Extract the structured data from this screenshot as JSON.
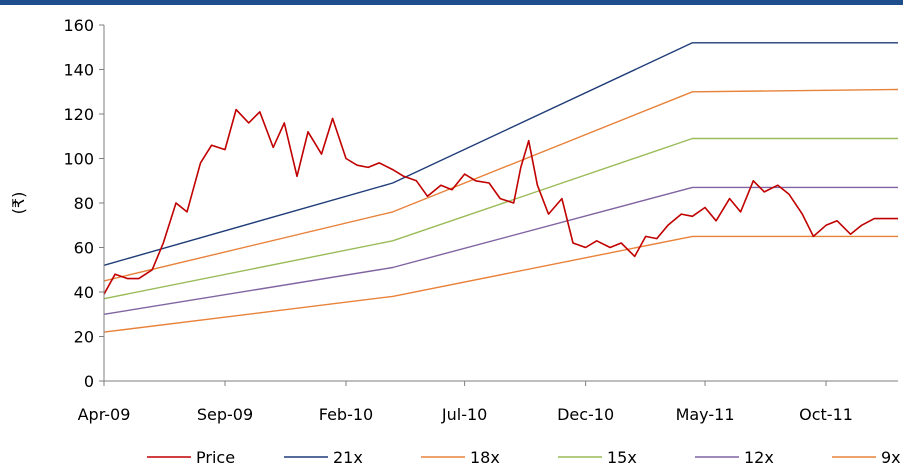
{
  "theme": {
    "topbar": "#1f4e8c",
    "axis": "#7f7f7f"
  },
  "chart_data": {
    "type": "line",
    "title": "",
    "xlabel": "",
    "ylabel": "(₹)",
    "ylim": [
      0,
      160
    ],
    "yticks": [
      "0",
      "20",
      "40",
      "60",
      "80",
      "100",
      "120",
      "140",
      "160"
    ],
    "xticks": [
      "Apr-09",
      "Sep-09",
      "Feb-10",
      "Jul-10",
      "Dec-10",
      "May-11",
      "Oct-11"
    ],
    "x_tick_dates": [
      "2009-04-01",
      "2009-09-01",
      "2010-02-01",
      "2010-07-01",
      "2010-12-01",
      "2011-05-01",
      "2011-10-01"
    ],
    "x_range": [
      "2009-04-01",
      "2011-12-31"
    ],
    "grid": false,
    "legend_position": "bottom",
    "series": [
      {
        "name": "Price",
        "color": "#c00000",
        "x": [
          "2009-04-01",
          "2009-04-15",
          "2009-05-01",
          "2009-05-15",
          "2009-06-01",
          "2009-06-15",
          "2009-07-01",
          "2009-07-15",
          "2009-08-01",
          "2009-08-15",
          "2009-09-01",
          "2009-09-15",
          "2009-10-01",
          "2009-10-15",
          "2009-11-01",
          "2009-11-15",
          "2009-12-01",
          "2009-12-15",
          "2010-01-01",
          "2010-01-15",
          "2010-02-01",
          "2010-02-15",
          "2010-03-01",
          "2010-03-15",
          "2010-04-01",
          "2010-04-15",
          "2010-05-01",
          "2010-05-15",
          "2010-06-01",
          "2010-06-15",
          "2010-07-01",
          "2010-07-15",
          "2010-08-01",
          "2010-08-15",
          "2010-09-01",
          "2010-09-10",
          "2010-09-20",
          "2010-10-01",
          "2010-10-15",
          "2010-11-01",
          "2010-11-15",
          "2010-12-01",
          "2010-12-15",
          "2011-01-01",
          "2011-01-15",
          "2011-02-01",
          "2011-02-15",
          "2011-03-01",
          "2011-03-15",
          "2011-04-01",
          "2011-04-15",
          "2011-05-01",
          "2011-05-15",
          "2011-06-01",
          "2011-06-15",
          "2011-07-01",
          "2011-07-15",
          "2011-08-01",
          "2011-08-15",
          "2011-09-01",
          "2011-09-15",
          "2011-10-01",
          "2011-10-15",
          "2011-11-01",
          "2011-11-15",
          "2011-12-01",
          "2011-12-31"
        ],
        "values": [
          39,
          48,
          46,
          46,
          50,
          62,
          80,
          76,
          98,
          106,
          104,
          122,
          116,
          121,
          105,
          116,
          92,
          112,
          102,
          118,
          100,
          97,
          96,
          98,
          95,
          92,
          90,
          83,
          88,
          86,
          93,
          90,
          89,
          82,
          80,
          96,
          108,
          88,
          75,
          82,
          62,
          60,
          63,
          60,
          62,
          56,
          65,
          64,
          70,
          75,
          74,
          78,
          72,
          82,
          76,
          90,
          85,
          88,
          84,
          75,
          65,
          70,
          72,
          66,
          70,
          73,
          73
        ]
      },
      {
        "name": "21x",
        "color": "#1f3c78",
        "x": [
          "2009-04-01",
          "2010-04-01",
          "2011-04-15",
          "2011-12-31"
        ],
        "values": [
          52,
          89,
          152,
          152
        ]
      },
      {
        "name": "18x",
        "color": "#e8823a",
        "x": [
          "2009-04-01",
          "2010-04-01",
          "2011-04-15",
          "2011-12-31"
        ],
        "values": [
          45,
          76,
          130,
          131
        ]
      },
      {
        "name": "15x",
        "color": "#9bbb59",
        "x": [
          "2009-04-01",
          "2010-04-01",
          "2011-04-15",
          "2011-12-31"
        ],
        "values": [
          37,
          63,
          109,
          109
        ]
      },
      {
        "name": "12x",
        "color": "#8064a2",
        "x": [
          "2009-04-01",
          "2010-04-01",
          "2011-04-15",
          "2011-12-31"
        ],
        "values": [
          30,
          51,
          87,
          87
        ]
      },
      {
        "name": "9x",
        "color": "#e8823a",
        "x": [
          "2009-04-01",
          "2010-04-01",
          "2011-04-15",
          "2011-12-31"
        ],
        "values": [
          22,
          38,
          65,
          65
        ]
      }
    ]
  }
}
